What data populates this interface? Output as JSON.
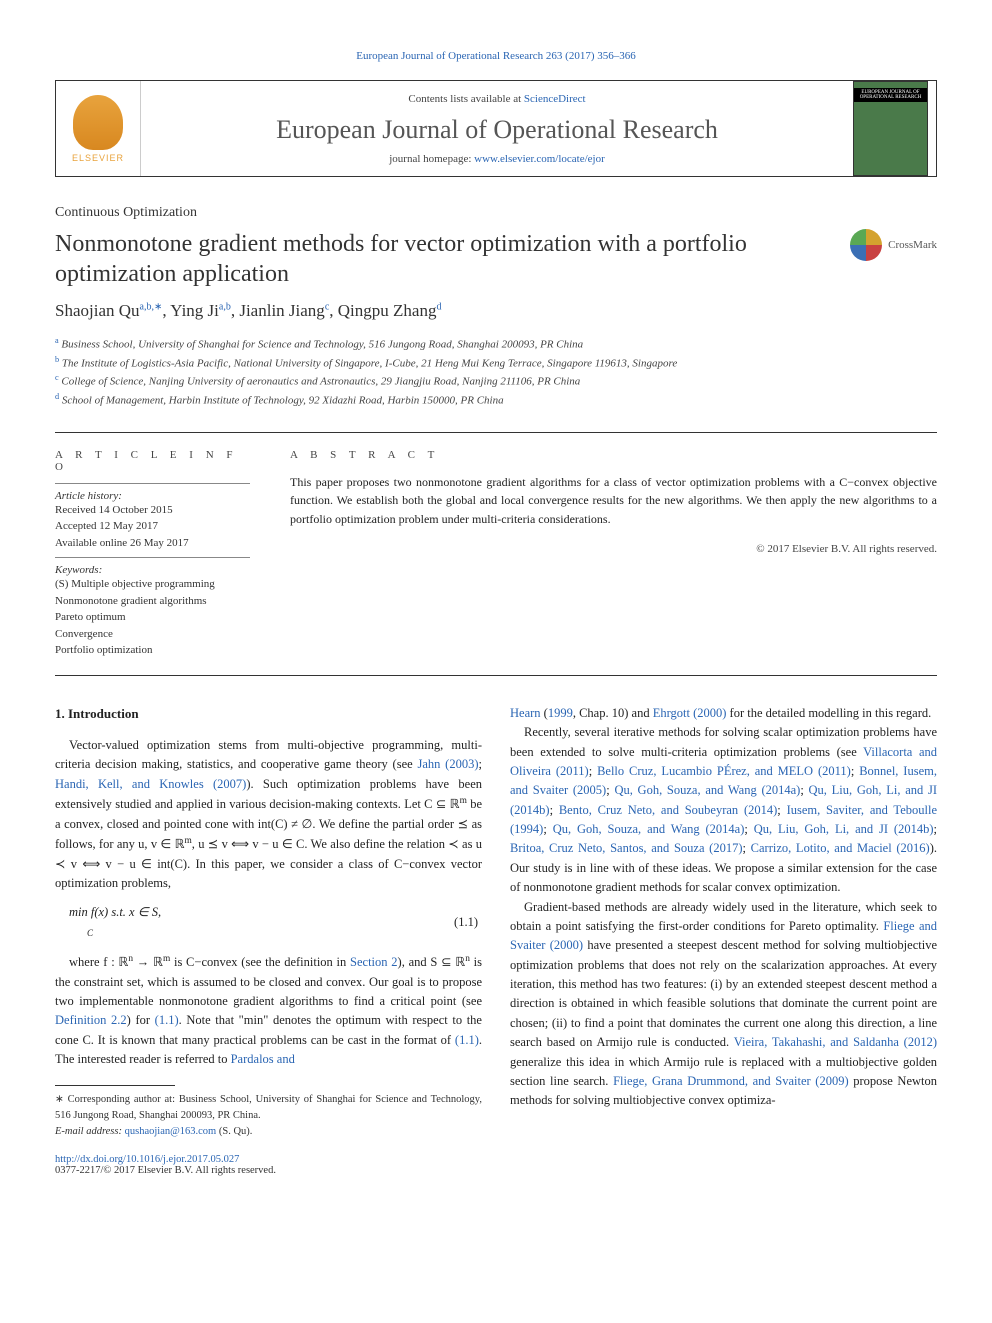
{
  "header": {
    "breadcrumb": "European Journal of Operational Research 263 (2017) 356–366",
    "contents_prefix": "Contents lists available at ",
    "contents_link": "ScienceDirect",
    "journal_title": "European Journal of Operational Research",
    "homepage_prefix": "journal homepage: ",
    "homepage_link": "www.elsevier.com/locate/ejor",
    "elsevier_label": "ELSEVIER",
    "cover_label": "EUROPEAN JOURNAL OF OPERATIONAL RESEARCH"
  },
  "article": {
    "section": "Continuous Optimization",
    "title": "Nonmonotone gradient methods for vector optimization with a portfolio optimization application",
    "crossmark": "CrossMark",
    "authors_html": "Shaojian Qu<sup>a,b,∗</sup>, Ying Ji<sup>a,b</sup>, Jianlin Jiang<sup>c</sup>, Qingpu Zhang<sup>d</sup>",
    "affiliations": [
      {
        "sup": "a",
        "text": "Business School, University of Shanghai for Science and Technology, 516 Jungong Road, Shanghai 200093, PR China"
      },
      {
        "sup": "b",
        "text": "The Institute of Logistics-Asia Pacific, National University of Singapore, I-Cube, 21 Heng Mui Keng Terrace, Singapore 119613, Singapore"
      },
      {
        "sup": "c",
        "text": "College of Science, Nanjing University of aeronautics and Astronautics, 29 Jiangjiu Road, Nanjing 211106, PR China"
      },
      {
        "sup": "d",
        "text": "School of Management, Harbin Institute of Technology, 92 Xidazhi Road, Harbin 150000, PR China"
      }
    ]
  },
  "info": {
    "heading": "A R T I C L E   I N F O",
    "history_label": "Article history:",
    "history": [
      "Received 14 October 2015",
      "Accepted 12 May 2017",
      "Available online 26 May 2017"
    ],
    "keywords_label": "Keywords:",
    "keywords": [
      "(S) Multiple objective programming",
      "Nonmonotone gradient algorithms",
      "Pareto optimum",
      "Convergence",
      "Portfolio optimization"
    ]
  },
  "abstract": {
    "heading": "A B S T R A C T",
    "text": "This paper proposes two nonmonotone gradient algorithms for a class of vector optimization problems with a C−convex objective function. We establish both the global and local convergence results for the new algorithms. We then apply the new algorithms to a portfolio optimization problem under multi-criteria considerations.",
    "copyright": "© 2017 Elsevier B.V. All rights reserved."
  },
  "body": {
    "section_num": "1.",
    "section_title": "Introduction",
    "left": {
      "p1a": "Vector-valued optimization stems from multi-objective programming, multi-criteria decision making, statistics, and cooperative game theory (see ",
      "p1_link1": "Jahn (2003)",
      "p1_sep1": "; ",
      "p1_link2": "Handi, Kell, and Knowles (2007)",
      "p1b": "). Such optimization problems have been extensively studied and applied in various decision-making contexts. Let C ⊆ ℝ",
      "p1_sup1": "m",
      "p1c": " be a convex, closed and pointed cone with int(C) ≠ ∅. We define the partial order ⪯ as follows, for any u,  v ∈ ℝ",
      "p1_sup2": "m",
      "p1d": ", u ⪯ v ⟺ v − u ∈ C. We also define the relation ≺ as u ≺ v ⟺ v − u ∈ int(C). In this paper, we consider a class of C−convex vector optimization problems,",
      "eq1": "min  f(x)   s.t.   x ∈ S,",
      "eq1_sub": "C",
      "eq1_num": "(1.1)",
      "p2a": "where f : ℝ",
      "p2_sup1": "n",
      "p2b": " → ℝ",
      "p2_sup2": "m",
      "p2c": " is C−convex (see the definition in ",
      "p2_link1": "Section 2",
      "p2d": "), and S ⊆ ℝ",
      "p2_sup3": "n",
      "p2e": " is the constraint set, which is assumed to be closed and convex. Our goal is to propose two implementable nonmonotone gradient algorithms to find a critical point (see ",
      "p2_link2": "Definition 2.2",
      "p2f": ") for ",
      "p2_link3": "(1.1)",
      "p2g": ". Note that \"min\" denotes the optimum with respect to the cone C. It is known that many practical problems can be cast in the format of ",
      "p2_sub": "C",
      "p2_link4": "(1.1)",
      "p2h": ". The interested reader is referred to ",
      "p2_link5": "Pardalos and"
    },
    "right": {
      "p1_link1": "Hearn",
      "p1a": " (",
      "p1_link1b": "1999",
      "p1b": ", Chap. 10) and ",
      "p1_link2": "Ehrgott (2000)",
      "p1c": " for the detailed modelling in this regard.",
      "p2a": "Recently, several iterative methods for solving scalar optimization problems have been extended to solve multi-criteria optimization problems (see ",
      "p2_link1": "Villacorta and Oliveira (2011)",
      "p2_s1": "; ",
      "p2_link2": "Bello Cruz, Lucambio PÉrez, and MELO (2011)",
      "p2_s2": "; ",
      "p2_link3": "Bonnel, Iusem, and Svaiter (2005)",
      "p2_s3": "; ",
      "p2_link4": "Qu, Goh, Souza, and Wang (2014a)",
      "p2_s4": "; ",
      "p2_link5": "Qu, Liu, Goh, Li, and JI (2014b)",
      "p2_s5": "; ",
      "p2_link6": "Bento, Cruz Neto, and Soubeyran (2014)",
      "p2_s6": "; ",
      "p2_link7": "Iusem, Saviter, and Teboulle (1994)",
      "p2_s7": "; ",
      "p2_link8": "Qu, Goh, Souza, and Wang (2014a)",
      "p2_s8": "; ",
      "p2_link9": "Qu, Liu, Goh, Li, and JI (2014b)",
      "p2_s9": "; ",
      "p2_link10": "Britoa, Cruz Neto, Santos, and Souza (2017)",
      "p2_s10": "; ",
      "p2_link11": "Carrizo, Lotito, and Maciel (2016)",
      "p2b": "). Our study is in line with of these ideas. We propose a similar extension for the case of nonmonotone gradient methods for scalar convex optimization.",
      "p3a": "Gradient-based methods are already widely used in the literature, which seek to obtain a point satisfying the first-order conditions for Pareto optimality. ",
      "p3_link1": "Fliege and Svaiter (2000)",
      "p3b": " have presented a steepest descent method for solving multiobjective optimization problems that does not rely on the scalarization approaches. At every iteration, this method has two features: (i) by an extended steepest descent method a direction is obtained in which feasible solutions that dominate the current point are chosen; (ii) to find a point that dominates the current one along this direction, a line search based on Armijo rule is conducted. ",
      "p3_link2": "Vieira, Takahashi, and Saldanha (2012)",
      "p3c": " generalize this idea in which Armijo rule is replaced with a multiobjective golden section line search. ",
      "p3_link3": "Fliege, Grana Drummond, and Svaiter (2009)",
      "p3d": " propose Newton methods for solving multiobjective convex optimiza-"
    }
  },
  "footnotes": {
    "corr": "∗ Corresponding author at: Business School, University of Shanghai for Science and Technology, 516 Jungong Road, Shanghai 200093, PR China.",
    "email_label": "E-mail address: ",
    "email": "qushaojian@163.com",
    "email_suffix": " (S. Qu).",
    "doi": "http://dx.doi.org/10.1016/j.ejor.2017.05.027",
    "rights": "0377-2217/© 2017 Elsevier B.V. All rights reserved."
  },
  "colors": {
    "link": "#2a65b3",
    "text": "#222222",
    "muted": "#444444",
    "border": "#333333"
  },
  "typography": {
    "body_fontsize_pt": 9.5,
    "title_fontsize_pt": 18,
    "journal_fontsize_pt": 20,
    "authors_fontsize_pt": 13,
    "affil_fontsize_pt": 8,
    "footnote_fontsize_pt": 8
  }
}
